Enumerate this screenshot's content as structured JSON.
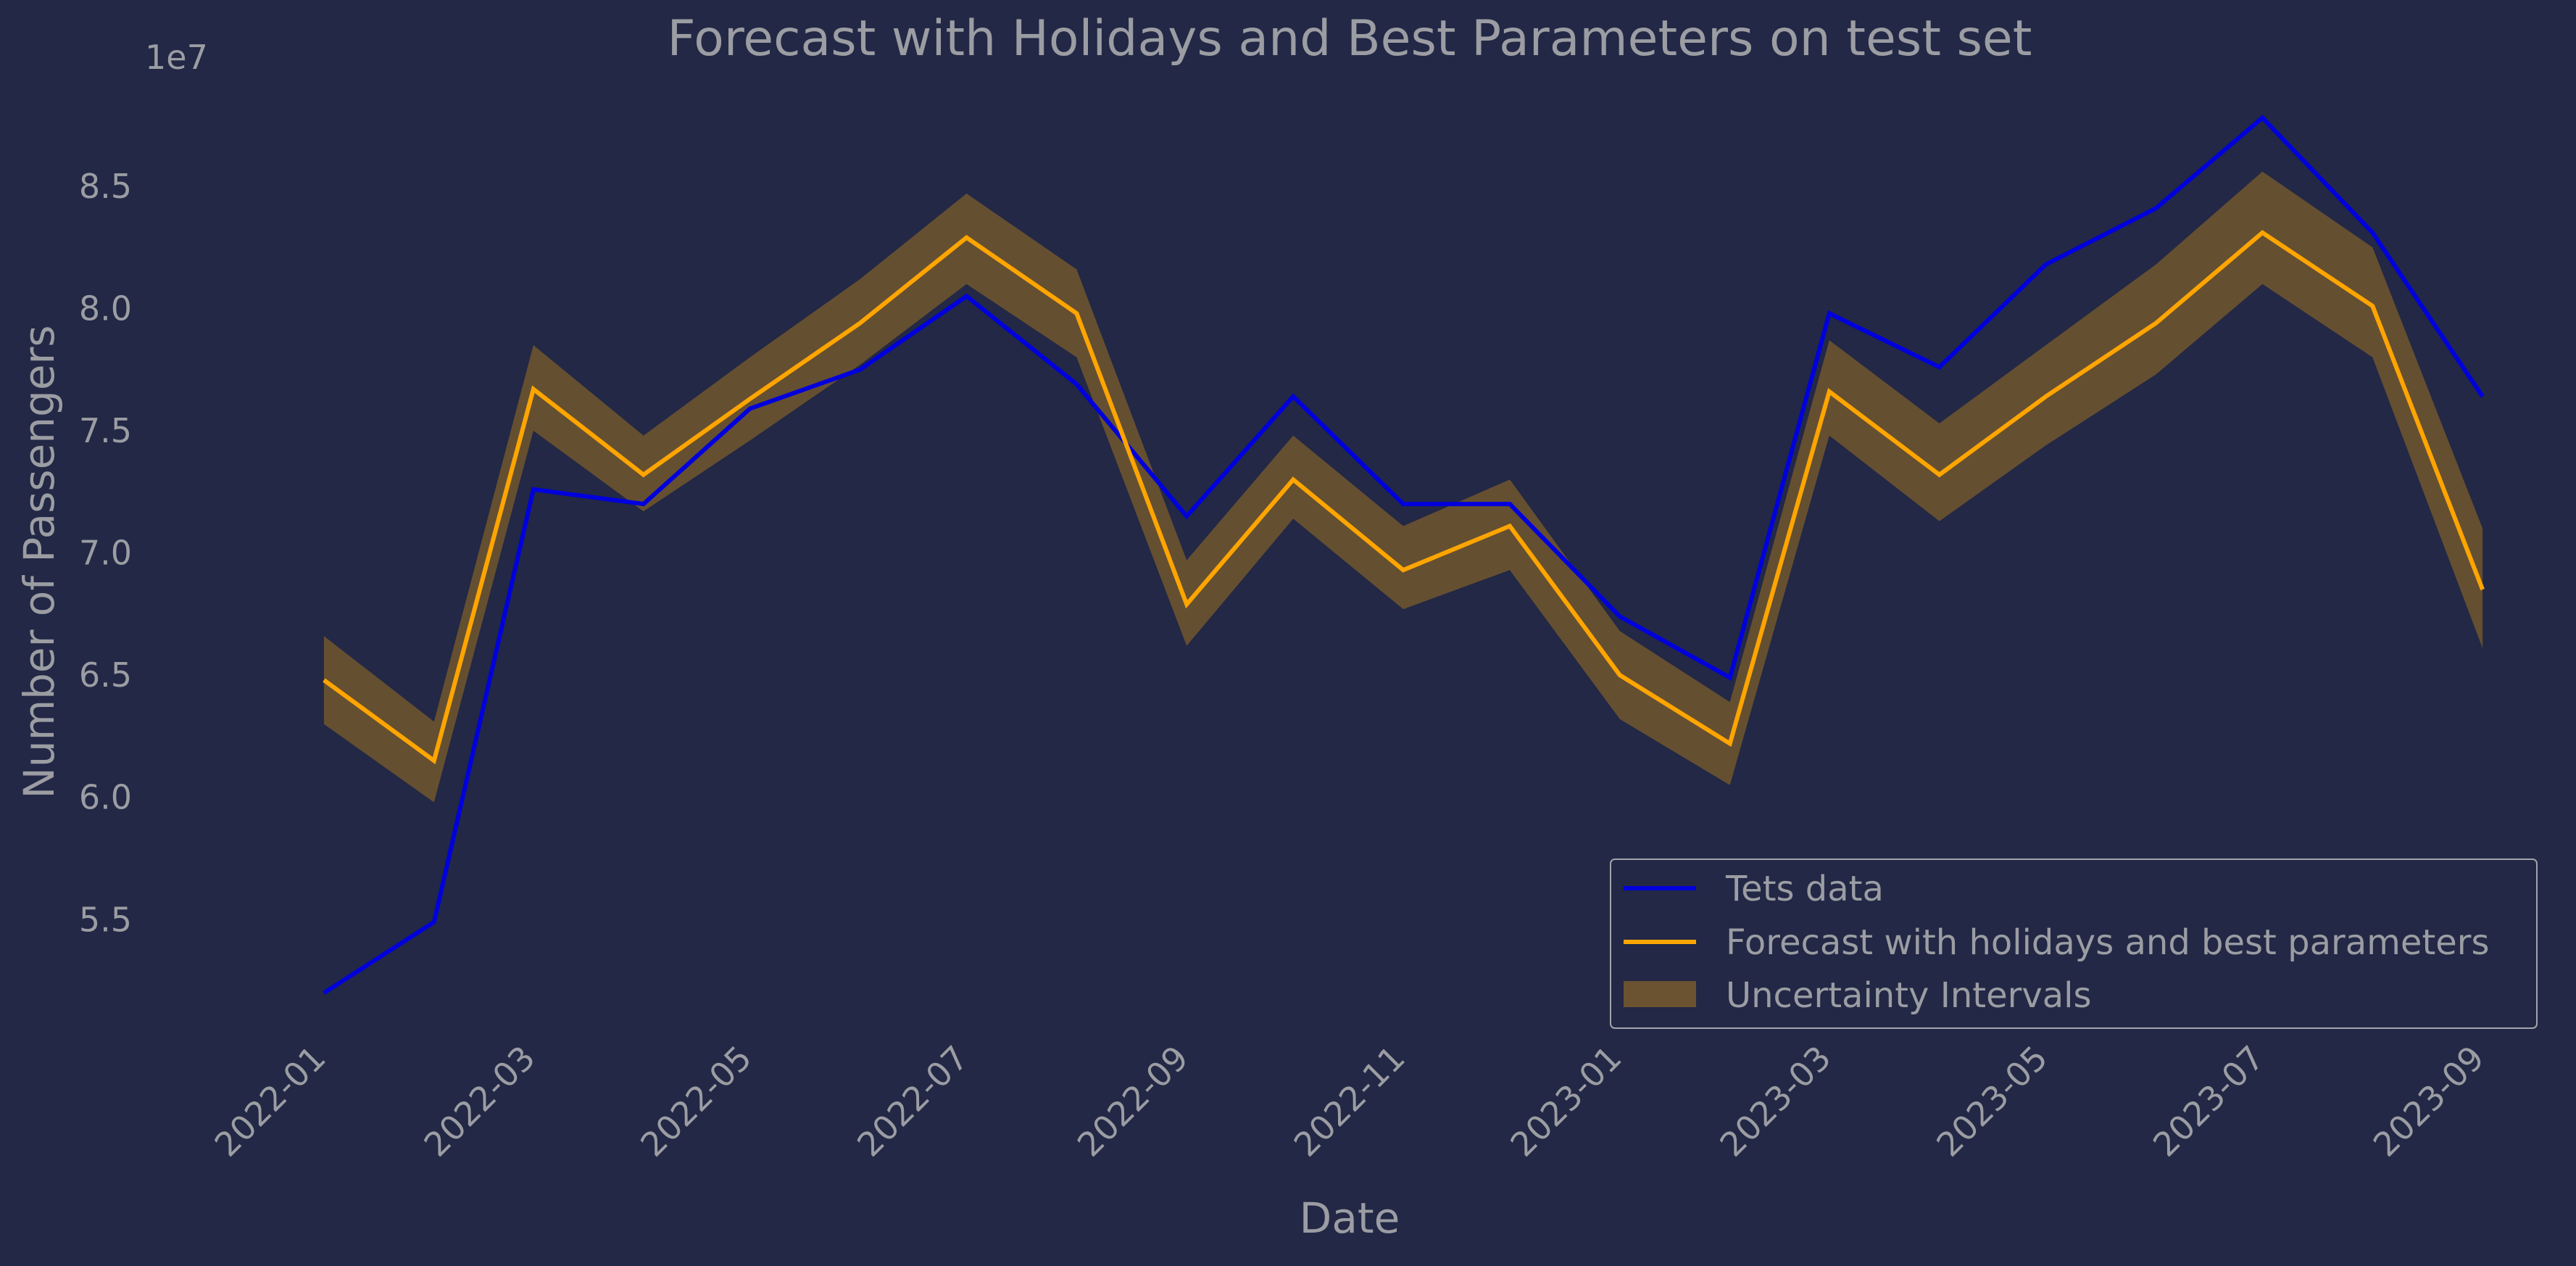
{
  "chart_data": {
    "type": "line",
    "title": "Forecast with Holidays and Best Parameters on test set",
    "xlabel": "Date",
    "ylabel": "Number of Passengers",
    "y_offset_label": "1e7",
    "y_scale": 10000000,
    "xlim": [
      "2021-12-01",
      "2023-09-01"
    ],
    "ylim": [
      50500000,
      89800000
    ],
    "x_ticks": [
      "2022-01",
      "2022-03",
      "2022-05",
      "2022-07",
      "2022-09",
      "2022-11",
      "2023-01",
      "2023-03",
      "2023-05",
      "2023-07",
      "2023-09"
    ],
    "y_ticks": [
      55000000,
      60000000,
      65000000,
      70000000,
      75000000,
      80000000,
      85000000
    ],
    "y_tick_labels": [
      "5.5",
      "6.0",
      "6.5",
      "7.0",
      "7.5",
      "8.0",
      "8.5"
    ],
    "grid": false,
    "legend_position": "lower-right",
    "dates": [
      "2021-12-31",
      "2022-01-31",
      "2022-02-28",
      "2022-03-31",
      "2022-04-30",
      "2022-05-31",
      "2022-06-30",
      "2022-07-31",
      "2022-08-31",
      "2022-09-30",
      "2022-10-31",
      "2022-11-30",
      "2022-12-31",
      "2023-01-31",
      "2023-02-28",
      "2023-03-31",
      "2023-04-30",
      "2023-05-31",
      "2023-06-30",
      "2023-07-31",
      "2023-08-31"
    ],
    "series": [
      {
        "name": "Tets data",
        "color": "#0000dd",
        "values": [
          52000000,
          54900000,
          72600000,
          72000000,
          75900000,
          77500000,
          80500000,
          76900000,
          71500000,
          76400000,
          72000000,
          72000000,
          67400000,
          64900000,
          79800000,
          77600000,
          81800000,
          84100000,
          87800000,
          83100000,
          76400000
        ]
      },
      {
        "name": "Forecast with holidays and best parameters",
        "color": "#ffa500",
        "values": [
          64800000,
          61500000,
          76700000,
          73200000,
          76300000,
          79400000,
          82900000,
          79800000,
          67900000,
          73000000,
          69300000,
          71100000,
          65000000,
          62200000,
          76600000,
          73200000,
          76400000,
          79400000,
          83100000,
          80100000,
          68500000
        ]
      }
    ],
    "interval": {
      "name": "Uncertainty Intervals",
      "color": "#6b5230",
      "lower": [
        63000000,
        59800000,
        75000000,
        71700000,
        74600000,
        77700000,
        81000000,
        78000000,
        66200000,
        71400000,
        67700000,
        69300000,
        63200000,
        60500000,
        74800000,
        71300000,
        74400000,
        77300000,
        81000000,
        78000000,
        66100000
      ],
      "upper": [
        66600000,
        63100000,
        78500000,
        74800000,
        78000000,
        81200000,
        84700000,
        81600000,
        69700000,
        74800000,
        71100000,
        73000000,
        66800000,
        63900000,
        78700000,
        75300000,
        78500000,
        81800000,
        85600000,
        82500000,
        71000000
      ]
    }
  }
}
